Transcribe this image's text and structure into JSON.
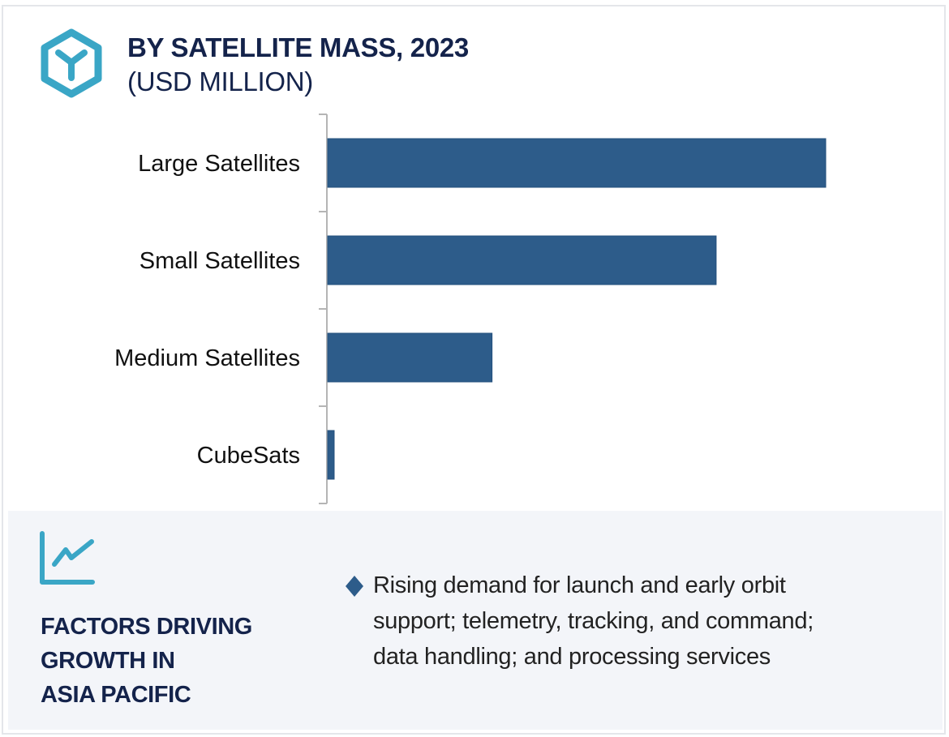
{
  "header": {
    "logo_icon": "hexagon-y-logo-icon",
    "title": "BY SATELLITE MASS, 2023",
    "subtitle": "(USD MILLION)"
  },
  "colors": {
    "bar": "#2d5c8a",
    "accent": "#3aa6c6",
    "title": "#14234b",
    "panel_bg": "#f3f5f9",
    "axis": "#b5b5b5"
  },
  "chart_data": {
    "type": "bar",
    "orientation": "horizontal",
    "title": "BY SATELLITE MASS, 2023",
    "subtitle": "(USD MILLION)",
    "xlabel": "",
    "ylabel": "",
    "categories": [
      "Large Satellites",
      "Small Satellites",
      "Medium Satellites",
      "CubeSats"
    ],
    "values": [
      100,
      78,
      33,
      1.3
    ],
    "value_scale": "relative (no axis ticks shown)",
    "xlim": [
      0,
      100
    ],
    "grid": false,
    "legend": "none"
  },
  "factors": {
    "icon": "line-chart-growth-icon",
    "title_lines": [
      "FACTORS DRIVING",
      "GROWTH IN",
      "ASIA PACIFIC"
    ],
    "bullet_icon": "diamond-bullet-icon",
    "items": [
      {
        "lines": [
          "Rising demand for launch and early orbit",
          "support; telemetry, tracking, and command;",
          "data handling; and processing services"
        ]
      }
    ]
  }
}
